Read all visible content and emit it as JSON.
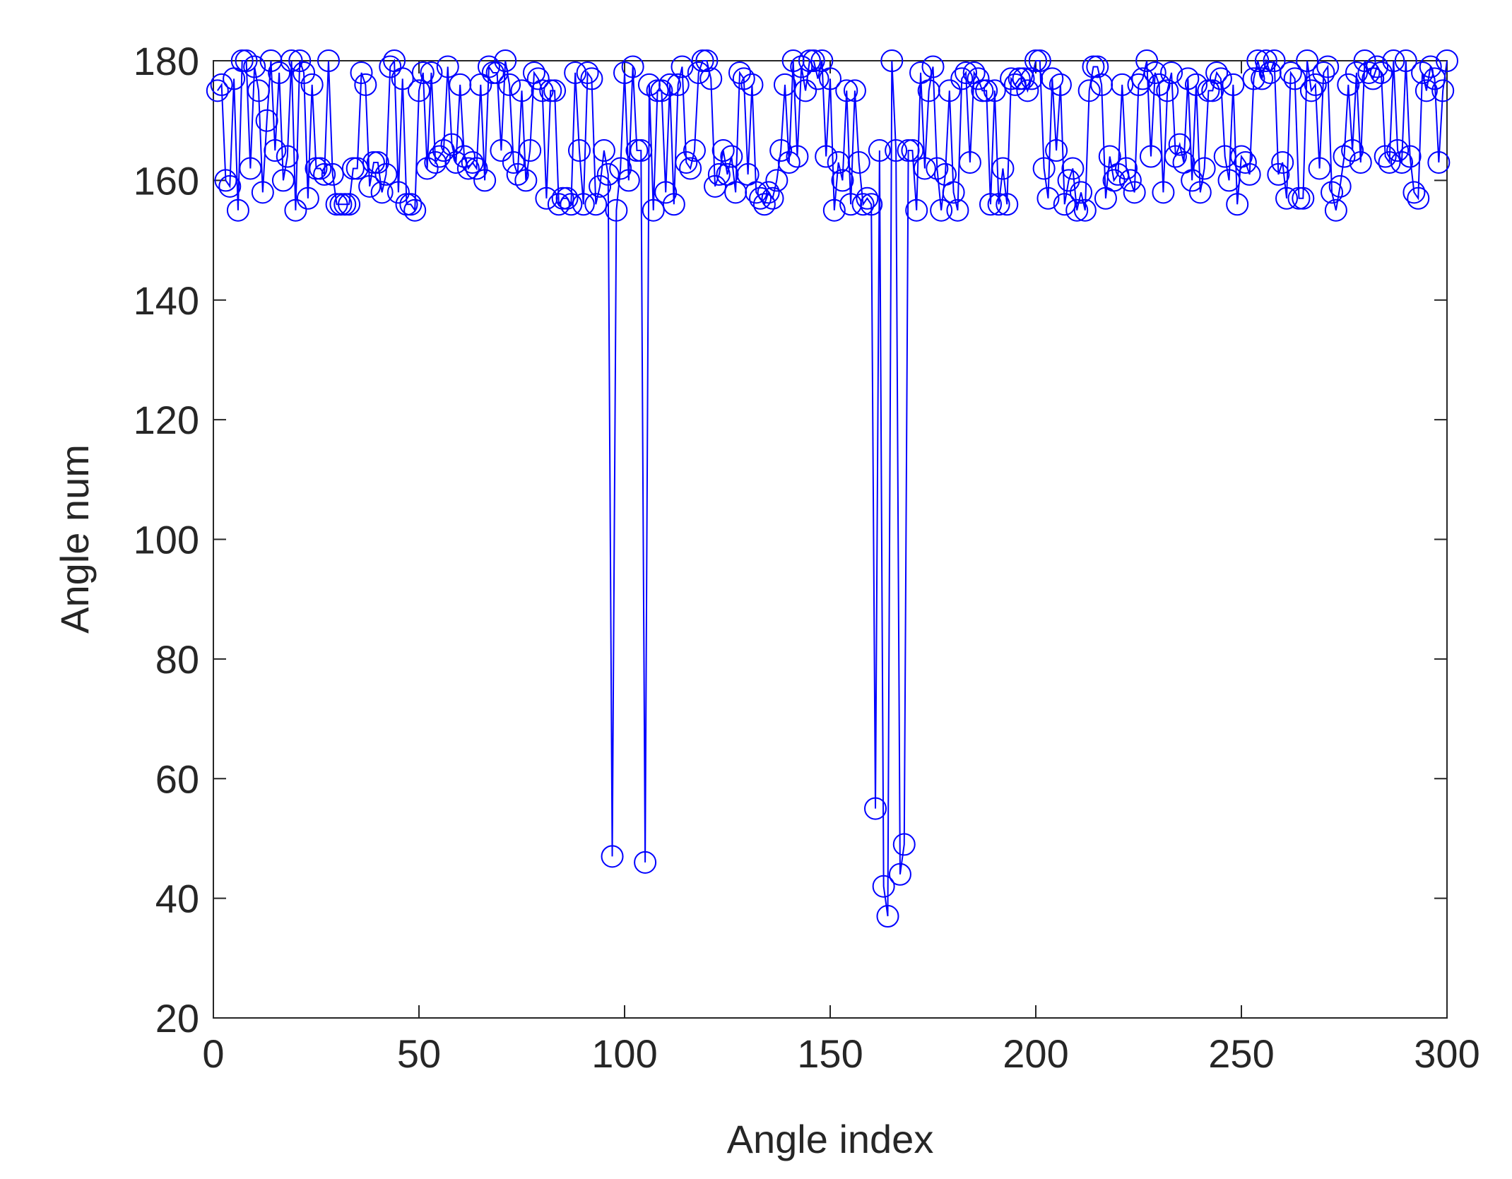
{
  "chart_data": {
    "type": "line",
    "xlabel": "Angle index",
    "ylabel": "Angle num",
    "xlim": [
      0,
      300
    ],
    "ylim": [
      20,
      180
    ],
    "xticks": [
      0,
      50,
      100,
      150,
      200,
      250,
      300
    ],
    "yticks": [
      20,
      40,
      60,
      80,
      100,
      120,
      140,
      160,
      180
    ],
    "marker": "circle",
    "x": [
      1,
      2,
      3,
      4,
      5,
      6,
      7,
      8,
      9,
      10,
      11,
      12,
      13,
      14,
      15,
      16,
      17,
      18,
      19,
      20,
      21,
      22,
      23,
      24,
      25,
      26,
      27,
      28,
      29,
      30,
      31,
      32,
      33,
      34,
      35,
      36,
      37,
      38,
      39,
      40,
      41,
      42,
      43,
      44,
      45,
      46,
      47,
      48,
      49,
      50,
      51,
      52,
      53,
      54,
      55,
      56,
      57,
      58,
      59,
      60,
      61,
      62,
      63,
      64,
      65,
      66,
      67,
      68,
      69,
      70,
      71,
      72,
      73,
      74,
      75,
      76,
      77,
      78,
      79,
      80,
      81,
      82,
      83,
      84,
      85,
      86,
      87,
      88,
      89,
      90,
      91,
      92,
      93,
      94,
      95,
      96,
      97,
      98,
      99,
      100,
      101,
      102,
      103,
      104,
      105,
      106,
      107,
      108,
      109,
      110,
      111,
      112,
      113,
      114,
      115,
      116,
      117,
      118,
      119,
      120,
      121,
      122,
      123,
      124,
      125,
      126,
      127,
      128,
      129,
      130,
      131,
      132,
      133,
      134,
      135,
      136,
      137,
      138,
      139,
      140,
      141,
      142,
      143,
      144,
      145,
      146,
      147,
      148,
      149,
      150,
      151,
      152,
      153,
      154,
      155,
      156,
      157,
      158,
      159,
      160,
      161,
      162,
      163,
      164,
      165,
      166,
      167,
      168,
      169,
      170,
      171,
      172,
      173,
      174,
      175,
      176,
      177,
      178,
      179,
      180,
      181,
      182,
      183,
      184,
      185,
      186,
      187,
      188,
      189,
      190,
      191,
      192,
      193,
      194,
      195,
      196,
      197,
      198,
      199,
      200,
      201,
      202,
      203,
      204,
      205,
      206,
      207,
      208,
      209,
      210,
      211,
      212,
      213,
      214,
      215,
      216,
      217,
      218,
      219,
      220,
      221,
      222,
      223,
      224,
      225,
      226,
      227,
      228,
      229,
      230,
      231,
      232,
      233,
      234,
      235,
      236,
      237,
      238,
      239,
      240,
      241,
      242,
      243,
      244,
      245,
      246,
      247,
      248,
      249,
      250,
      251,
      252,
      253,
      254,
      255,
      256,
      257,
      258,
      259,
      260,
      261,
      262,
      263,
      264,
      265,
      266,
      267,
      268,
      269,
      270,
      271,
      272,
      273,
      274,
      275,
      276,
      277,
      278,
      279,
      280,
      281,
      282,
      283,
      284,
      285,
      286,
      287,
      288,
      289,
      290,
      291,
      292,
      293,
      294,
      295,
      296,
      297,
      298,
      299,
      300
    ],
    "series": [
      {
        "color": "#0000ff",
        "values": [
          175,
          176,
          160,
          159,
          177,
          155,
          180,
          180,
          162,
          179,
          175,
          158,
          170,
          180,
          165,
          178,
          160,
          164,
          180,
          155,
          180,
          178,
          157,
          176,
          162,
          162,
          161,
          180,
          161,
          156,
          156,
          156,
          156,
          162,
          162,
          178,
          176,
          159,
          163,
          163,
          158,
          161,
          179,
          180,
          158,
          177,
          156,
          156,
          155,
          175,
          178,
          162,
          178,
          163,
          164,
          165,
          179,
          166,
          163,
          176,
          164,
          162,
          163,
          162,
          176,
          160,
          179,
          178,
          178,
          165,
          180,
          176,
          163,
          161,
          175,
          160,
          165,
          178,
          177,
          175,
          157,
          175,
          175,
          156,
          157,
          157,
          156,
          178,
          165,
          156,
          178,
          177,
          156,
          159,
          165,
          161,
          47,
          155,
          162,
          178,
          160,
          179,
          165,
          165,
          46,
          176,
          155,
          175,
          175,
          158,
          176,
          156,
          176,
          179,
          163,
          162,
          165,
          178,
          180,
          180,
          177,
          159,
          161,
          165,
          161,
          164,
          158,
          178,
          177,
          161,
          176,
          158,
          157,
          156,
          158,
          157,
          160,
          165,
          176,
          163,
          180,
          164,
          179,
          175,
          180,
          180,
          177,
          180,
          164,
          177,
          155,
          163,
          160,
          175,
          156,
          175,
          163,
          156,
          157,
          156,
          55,
          165,
          42,
          37,
          180,
          165,
          44,
          49,
          165,
          165,
          155,
          178,
          162,
          175,
          179,
          162,
          155,
          161,
          175,
          158,
          155,
          177,
          178,
          163,
          178,
          177,
          175,
          175,
          156,
          175,
          156,
          162,
          156,
          177,
          176,
          177,
          177,
          175,
          177,
          180,
          180,
          162,
          157,
          177,
          165,
          176,
          156,
          160,
          162,
          155,
          158,
          155,
          175,
          179,
          179,
          176,
          157,
          164,
          160,
          161,
          176,
          162,
          160,
          158,
          176,
          177,
          180,
          164,
          178,
          176,
          158,
          175,
          178,
          164,
          166,
          163,
          177,
          160,
          176,
          158,
          162,
          175,
          175,
          178,
          177,
          164,
          160,
          176,
          156,
          164,
          163,
          161,
          177,
          180,
          177,
          180,
          178,
          180,
          161,
          163,
          157,
          178,
          177,
          157,
          157,
          180,
          175,
          176,
          162,
          178,
          179,
          158,
          155,
          159,
          164,
          176,
          165,
          178,
          163,
          180,
          178,
          177,
          179,
          178,
          164,
          163,
          180,
          165,
          163,
          180,
          164,
          158,
          157,
          178,
          175,
          179,
          177,
          163,
          175,
          180
        ]
      }
    ]
  }
}
